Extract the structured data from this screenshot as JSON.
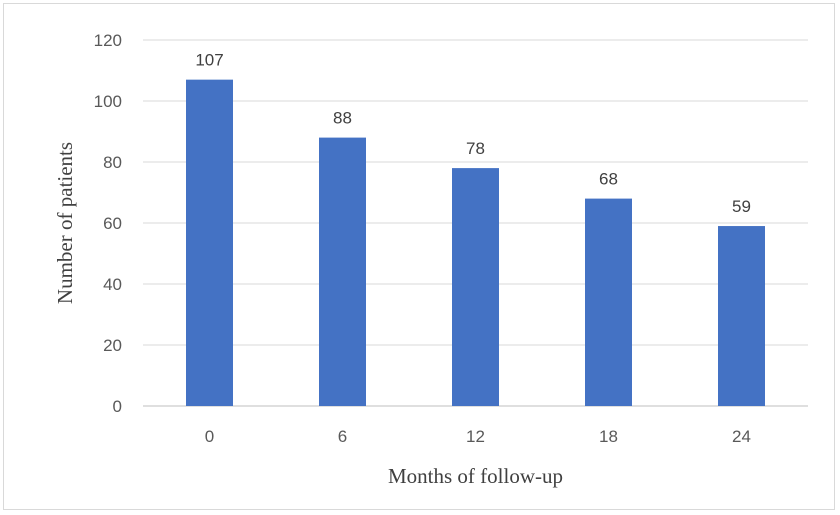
{
  "chart_data": {
    "type": "bar",
    "categories": [
      "0",
      "6",
      "12",
      "18",
      "24"
    ],
    "values": [
      107,
      88,
      78,
      68,
      59
    ],
    "title": "",
    "xlabel": "Months of follow-up",
    "ylabel": "Number of patients",
    "ylim": [
      0,
      120
    ],
    "yticks": [
      "0",
      "20",
      "40",
      "60",
      "80",
      "100",
      "120"
    ],
    "grid": true,
    "data_labels": [
      "107",
      "88",
      "78",
      "68",
      "59"
    ],
    "colors": {
      "bar": "#4472c4",
      "grid": "#d9d9d9",
      "axis": "#bfbfbf"
    }
  }
}
